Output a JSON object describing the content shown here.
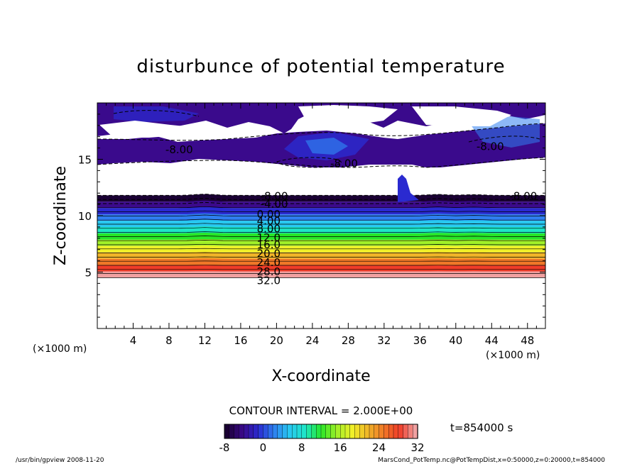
{
  "chart_data": {
    "type": "heatmap",
    "title": "disturbunce of potential temperature",
    "xlabel": "X-coordinate",
    "ylabel": "Z-coordinate",
    "x_unit": "(×1000 m)",
    "x_unit_right": "(×1000 m)",
    "xlim": [
      0,
      50
    ],
    "ylim": [
      0,
      20
    ],
    "x_ticks": [
      4,
      8,
      12,
      16,
      20,
      24,
      28,
      32,
      36,
      40,
      44,
      48
    ],
    "y_ticks": [
      5,
      10,
      15
    ],
    "contour_interval": "CONTOUR INTERVAL = 2.000E+00",
    "time_label": "t=854000 s",
    "colorbar": {
      "min": -8,
      "max": 32,
      "ticks": [
        -8,
        0,
        8,
        16,
        24,
        32
      ],
      "colors": [
        "#1a0033",
        "#3b0a8a",
        "#2a2ad0",
        "#2f7ff0",
        "#28c8f0",
        "#1ee6c8",
        "#28e628",
        "#a0f028",
        "#f0f028",
        "#f0b428",
        "#f07828",
        "#f03c28",
        "#f0a0a0"
      ]
    },
    "contour_labels": [
      {
        "text": "-8.00",
        "x": 7.6,
        "z": 15.9
      },
      {
        "text": "-8.00",
        "x": 42.3,
        "z": 16.2
      },
      {
        "text": "-8.00",
        "x": 46.0,
        "z": 11.8
      },
      {
        "text": "-8.00",
        "x": 18.2,
        "z": 11.8
      },
      {
        "text": "-4.00",
        "x": 18.2,
        "z": 11.1
      },
      {
        "text": "0.00",
        "x": 17.8,
        "z": 10.2
      },
      {
        "text": "4.00",
        "x": 17.8,
        "z": 9.6
      },
      {
        "text": "8.00",
        "x": 17.8,
        "z": 8.9
      },
      {
        "text": "12.0",
        "x": 17.8,
        "z": 8.1
      },
      {
        "text": "16.0",
        "x": 17.8,
        "z": 7.5
      },
      {
        "text": "20.0",
        "x": 17.8,
        "z": 6.7
      },
      {
        "text": "24.0",
        "x": 17.8,
        "z": 5.9
      },
      {
        "text": "28.0",
        "x": 17.8,
        "z": 5.1
      },
      {
        "text": "32.0",
        "x": 17.8,
        "z": 4.3
      },
      {
        "text": "-8.00",
        "x": 26.0,
        "z": 14.7
      }
    ]
  },
  "footer": {
    "left": "/usr/bin/gpview  2008-11-20",
    "right": "MarsCond_PotTemp.nc@PotTempDist,x=0:50000,z=0:20000,t=854000"
  }
}
